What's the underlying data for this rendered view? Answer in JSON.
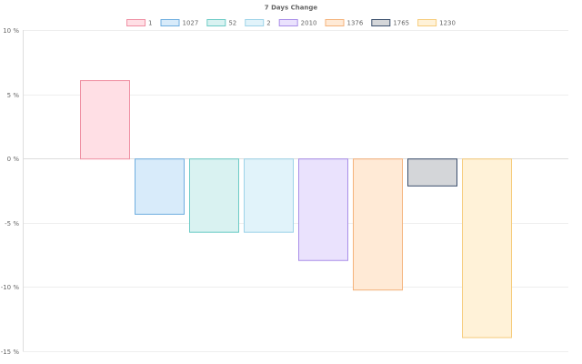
{
  "chart_data": {
    "type": "bar",
    "title": "7 Days Change",
    "xlabel": "",
    "ylabel": "",
    "y_unit": "%",
    "ylim": [
      -15,
      10
    ],
    "yticks": [
      10,
      5,
      0,
      -5,
      -10,
      -15
    ],
    "grid": true,
    "legend_position": "top",
    "series": [
      {
        "name": "1",
        "value": 6.1,
        "fill": "#ffdfe5",
        "stroke": "#ef8fa3"
      },
      {
        "name": "1027",
        "value": -4.3,
        "fill": "#d8ebfa",
        "stroke": "#6faee0"
      },
      {
        "name": "52",
        "value": -5.7,
        "fill": "#d9f2f1",
        "stroke": "#6ccbc6"
      },
      {
        "name": "2",
        "value": -5.7,
        "fill": "#e1f3fa",
        "stroke": "#9dd3e8"
      },
      {
        "name": "2010",
        "value": -7.9,
        "fill": "#eae2fd",
        "stroke": "#a98ee8"
      },
      {
        "name": "1376",
        "value": -10.2,
        "fill": "#ffead6",
        "stroke": "#f4b27a"
      },
      {
        "name": "1765",
        "value": -2.1,
        "fill": "#d4d6d9",
        "stroke": "#3b4f6d"
      },
      {
        "name": "1230",
        "value": -13.9,
        "fill": "#fff2d8",
        "stroke": "#f6cc7c"
      }
    ]
  }
}
